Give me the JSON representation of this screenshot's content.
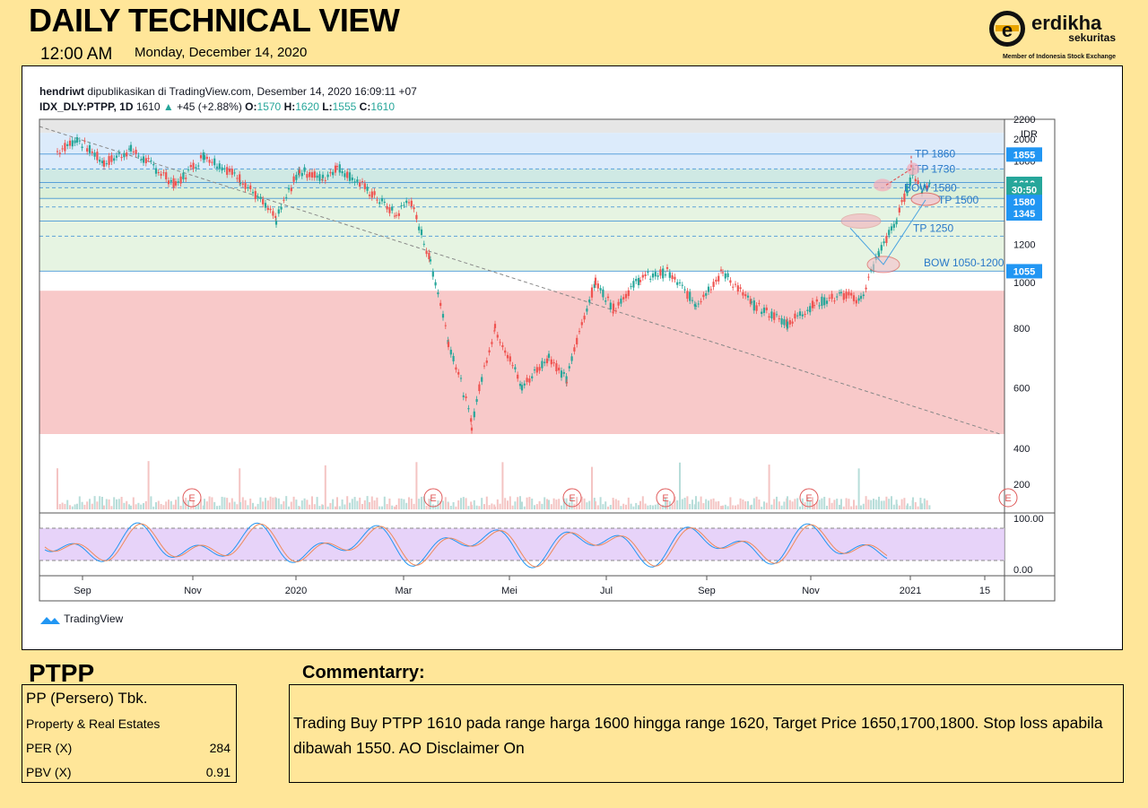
{
  "header": {
    "title": "DAILY TECHNICAL VIEW",
    "time": "12:00 AM",
    "date": "Monday, December 14, 2020"
  },
  "brand": {
    "name": "erdikha",
    "sub": "sekuritas",
    "member": "Member of Indonesia Stock Exchange",
    "logo_letter": "e"
  },
  "tv": {
    "publisher": "hendriwt",
    "published_text": "dipublikasikan di TradingView.com, Desember 14, 2020 16:09:11 +07",
    "symbol": "IDX_DLY:PTPP, 1D",
    "last": "1610",
    "change": "+45 (+2.88%)",
    "o_label": "O:",
    "o": "1570",
    "h_label": "H:",
    "h": "1620",
    "l_label": "L:",
    "l": "1555",
    "c_label": "C:",
    "c": "1610",
    "footer": "TradingView"
  },
  "stock": {
    "ticker": "PTPP",
    "company": "PP (Persero) Tbk.",
    "sector": "Property & Real Estates",
    "per_label": "PER (X)",
    "per": "284",
    "pbv_label": "PBV (X)",
    "pbv": "0.91"
  },
  "commentary": {
    "title": "Commentarry:",
    "text": "Trading Buy PTPP 1610 pada range harga 1600 hingga range 1620, Target Price 1650,1700,1800. Stop loss apabila dibawah 1550. AO Disclaimer On"
  },
  "chart_data": {
    "type": "candlestick",
    "currency": "IDR",
    "ylim": [
      480,
      2200
    ],
    "y_ticks": [
      400,
      600,
      800,
      1000,
      1200,
      1400,
      1600,
      1800,
      2000,
      2200
    ],
    "x_ticks": [
      "Sep",
      "Nov",
      "2020",
      "Mar",
      "Mei",
      "Jul",
      "Sep",
      "Nov",
      "2021",
      "15"
    ],
    "price_path": [
      {
        "d": "2019-08-15",
        "p": 1880
      },
      {
        "d": "2019-08-26",
        "p": 2000
      },
      {
        "d": "2019-09-10",
        "p": 1780
      },
      {
        "d": "2019-09-25",
        "p": 1900
      },
      {
        "d": "2019-10-20",
        "p": 1600
      },
      {
        "d": "2019-11-05",
        "p": 1850
      },
      {
        "d": "2019-11-25",
        "p": 1650
      },
      {
        "d": "2019-12-15",
        "p": 1350
      },
      {
        "d": "2019-12-28",
        "p": 1720
      },
      {
        "d": "2020-01-10",
        "p": 1650
      },
      {
        "d": "2020-01-18",
        "p": 1750
      },
      {
        "d": "2020-02-05",
        "p": 1550
      },
      {
        "d": "2020-02-20",
        "p": 1380
      },
      {
        "d": "2020-02-27",
        "p": 1500
      },
      {
        "d": "2020-03-10",
        "p": 1100
      },
      {
        "d": "2020-03-20",
        "p": 750
      },
      {
        "d": "2020-04-02",
        "p": 500
      },
      {
        "d": "2020-04-15",
        "p": 800
      },
      {
        "d": "2020-04-30",
        "p": 600
      },
      {
        "d": "2020-05-15",
        "p": 700
      },
      {
        "d": "2020-05-25",
        "p": 620
      },
      {
        "d": "2020-06-10",
        "p": 1000
      },
      {
        "d": "2020-06-20",
        "p": 880
      },
      {
        "d": "2020-07-05",
        "p": 1020
      },
      {
        "d": "2020-07-20",
        "p": 1050
      },
      {
        "d": "2020-08-05",
        "p": 900
      },
      {
        "d": "2020-08-20",
        "p": 1050
      },
      {
        "d": "2020-09-05",
        "p": 900
      },
      {
        "d": "2020-09-25",
        "p": 820
      },
      {
        "d": "2020-10-10",
        "p": 900
      },
      {
        "d": "2020-10-25",
        "p": 940
      },
      {
        "d": "2020-11-05",
        "p": 920
      },
      {
        "d": "2020-11-15",
        "p": 1150
      },
      {
        "d": "2020-11-25",
        "p": 1350
      },
      {
        "d": "2020-12-01",
        "p": 1580
      },
      {
        "d": "2020-12-04",
        "p": 1700
      },
      {
        "d": "2020-12-09",
        "p": 1570
      },
      {
        "d": "2020-12-14",
        "p": 1610
      }
    ],
    "zones": [
      {
        "from": 2060,
        "to": 2200,
        "color": "#e6e6e6"
      },
      {
        "from": 1730,
        "to": 2060,
        "color": "#dcebfb"
      },
      {
        "from": 1580,
        "to": 1730,
        "color": "#cfe9e4"
      },
      {
        "from": 1490,
        "to": 1580,
        "color": "#dcf0d8"
      },
      {
        "from": 1055,
        "to": 1490,
        "color": "#e6f4e2"
      },
      {
        "from": 480,
        "to": 960,
        "color": "#f8c9c9"
      }
    ],
    "levels": [
      1860,
      1730,
      1620,
      1580,
      1500,
      1440,
      1345,
      1250,
      1055
    ],
    "annotations": [
      {
        "text": "TP 1860",
        "y": 1860
      },
      {
        "text": "TP 1730",
        "y": 1730
      },
      {
        "text": "BOW 1580",
        "y": 1580
      },
      {
        "text": "TP 1500",
        "y": 1490
      },
      {
        "text": "TP 1250",
        "y": 1300
      },
      {
        "text": "BOW 1050-1200",
        "y": 1100
      }
    ],
    "price_labels": [
      {
        "text": "1855",
        "y": 1855,
        "color": "#2196f3"
      },
      {
        "text": "1610",
        "y": 1610,
        "color": "#26a69a"
      },
      {
        "text": "30:50",
        "y": 1565,
        "color": "#26a69a"
      },
      {
        "text": "1580",
        "y": 1475,
        "color": "#2196f3"
      },
      {
        "text": "1345",
        "y": 1395,
        "color": "#2196f3"
      },
      {
        "text": "1055",
        "y": 1055,
        "color": "#2196f3"
      }
    ],
    "volume_ticks": [
      200,
      400
    ],
    "earnings_marker": "E",
    "stoch_ticks": [
      "100.00",
      "0.00"
    ],
    "stoch_band": [
      20,
      80
    ]
  }
}
